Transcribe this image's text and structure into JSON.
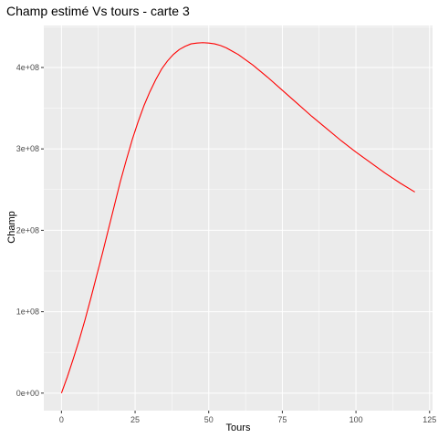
{
  "chart_data": {
    "type": "line",
    "title": "Champ estimé Vs tours - carte 3",
    "xlabel": "Tours",
    "ylabel": "Champ",
    "xlim": [
      -6,
      126
    ],
    "ylim": [
      -21500000,
      451500000
    ],
    "x_ticks": [
      0,
      25,
      50,
      75,
      100,
      125
    ],
    "x_tick_labels": [
      "0",
      "25",
      "50",
      "75",
      "100",
      "125"
    ],
    "y_ticks": [
      0,
      100000000,
      200000000,
      300000000,
      400000000
    ],
    "y_tick_labels": [
      "0e+00",
      "1e+08",
      "2e+08",
      "3e+08",
      "4e+08"
    ],
    "grid": true,
    "legend": "none",
    "series": [
      {
        "color": "#ff0000",
        "x": [
          0,
          2,
          4,
          6,
          8,
          10,
          12,
          14,
          16,
          18,
          20,
          22,
          24,
          26,
          28,
          30,
          32,
          34,
          36,
          38,
          40,
          42,
          44,
          46,
          48,
          50,
          52,
          54,
          56,
          58,
          60,
          65,
          70,
          75,
          80,
          85,
          90,
          95,
          100,
          105,
          110,
          115,
          120
        ],
        "y": [
          0,
          20000000,
          42000000,
          65000000,
          90000000,
          117000000,
          145000000,
          173000000,
          202000000,
          231000000,
          260000000,
          286000000,
          311000000,
          333000000,
          353000000,
          370000000,
          385000000,
          398000000,
          408000000,
          416000000,
          422000000,
          426000000,
          429000000,
          430000000,
          430500000,
          430000000,
          429000000,
          427000000,
          424000000,
          420000000,
          416000000,
          403000000,
          388000000,
          372000000,
          356000000,
          340000000,
          325000000,
          310000000,
          296000000,
          283000000,
          270000000,
          258000000,
          247000000
        ]
      }
    ]
  }
}
